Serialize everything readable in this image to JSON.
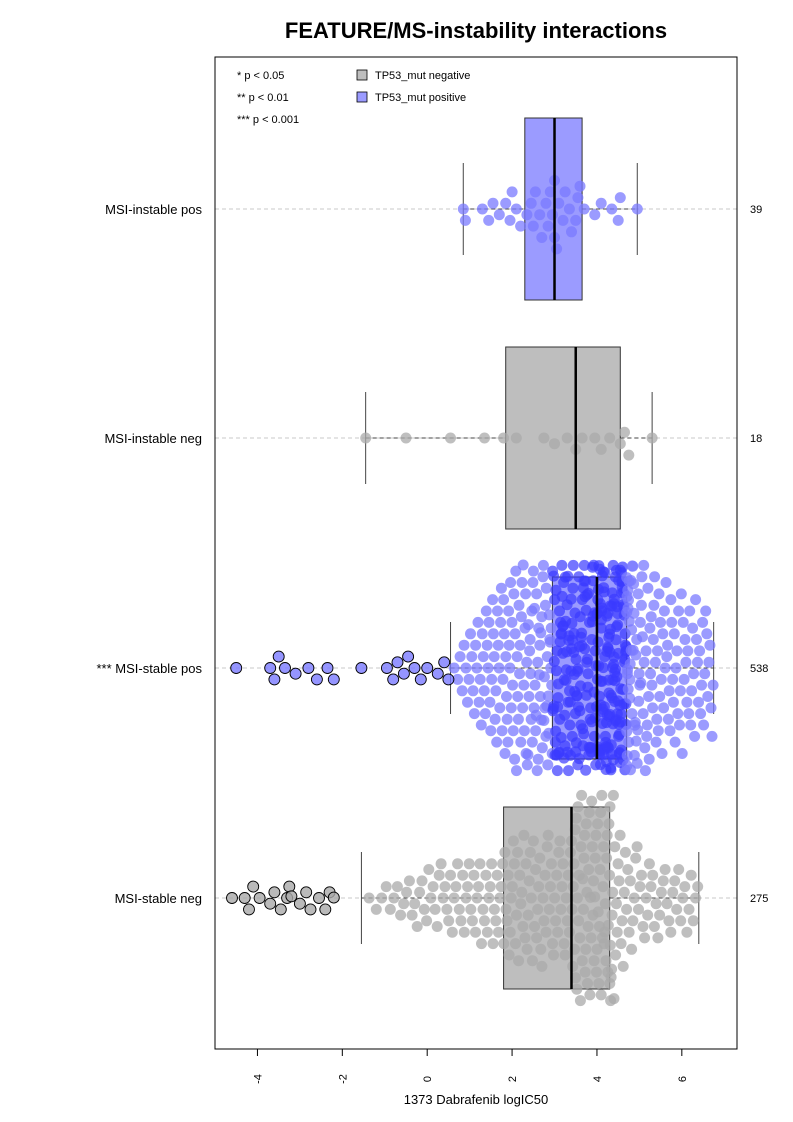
{
  "chart_data": {
    "type": "boxplot-beeswarm",
    "title": "FEATURE/MS-instability interactions",
    "xlabel": "1373 Dabrafenib logIC50",
    "xlim": [
      -5.0,
      7.3
    ],
    "xticks": [
      -4,
      -2,
      0,
      2,
      4,
      6
    ],
    "xtick_labels": [
      "-4",
      "-2",
      "0",
      "2",
      "4",
      "6"
    ],
    "grid": "horizontal dashed lines through each group",
    "legend_position": "top-left",
    "significance_legend": [
      "* p < 0.05",
      "** p < 0.01",
      "*** p < 0.001"
    ],
    "legend": [
      {
        "label": "TP53_mut negative",
        "color": "#bebebe"
      },
      {
        "label": "TP53_mut positive",
        "color": "#9b9bff"
      }
    ],
    "colors": {
      "negative_fill": "#bebebe",
      "negative_point": "#a9a9a9",
      "positive_fill": "#9b9bff",
      "positive_point": "#7a7aff",
      "positive_point_dense": "#3b3bff"
    },
    "groups": [
      {
        "label": "MSI-instable pos",
        "count_label": "39",
        "tp53": "positive",
        "box": {
          "whisker_low": 0.85,
          "q1": 2.3,
          "median": 3.0,
          "q3": 3.65,
          "whisker_high": 4.95
        },
        "outliers": [],
        "points": [
          0.85,
          0.9,
          1.3,
          1.45,
          1.55,
          1.7,
          1.85,
          1.95,
          2.0,
          2.1,
          2.2,
          2.35,
          2.45,
          2.5,
          2.55,
          2.65,
          2.7,
          2.8,
          2.85,
          2.9,
          2.95,
          3.0,
          3.0,
          3.05,
          3.1,
          3.2,
          3.25,
          3.35,
          3.4,
          3.5,
          3.55,
          3.6,
          3.7,
          3.95,
          4.1,
          4.35,
          4.5,
          4.55,
          4.95
        ]
      },
      {
        "label": "MSI-instable neg",
        "count_label": "18",
        "tp53": "negative",
        "box": {
          "whisker_low": -1.45,
          "q1": 1.85,
          "median": 3.5,
          "q3": 4.55,
          "whisker_high": 5.3
        },
        "outliers": [],
        "points": [
          -1.45,
          -0.5,
          0.55,
          1.35,
          1.8,
          2.1,
          2.75,
          3.0,
          3.3,
          3.5,
          3.65,
          3.95,
          4.1,
          4.3,
          4.55,
          4.65,
          4.75,
          5.3
        ]
      },
      {
        "label": "MSI-stable pos",
        "count_label": "538",
        "significance": "***",
        "tp53": "positive",
        "box": {
          "whisker_low": 0.55,
          "q1": 2.95,
          "median": 4.0,
          "q3": 4.7,
          "whisker_high": 6.75
        },
        "outliers": [
          -4.5,
          -3.7,
          -3.6,
          -3.5,
          -3.35,
          -3.1,
          -2.8,
          -2.6,
          -2.35,
          -2.2,
          -1.55,
          -0.95,
          -0.8,
          -0.7,
          -0.55,
          -0.45,
          -0.3,
          -0.15,
          0.0,
          0.25,
          0.4,
          0.5
        ],
        "distribution": {
          "min": 0.55,
          "q1": 2.95,
          "median": 4.0,
          "q3": 4.7,
          "max": 6.75
        }
      },
      {
        "label": "MSI-stable neg",
        "count_label": "275",
        "tp53": "negative",
        "box": {
          "whisker_low": -1.55,
          "q1": 1.8,
          "median": 3.4,
          "q3": 4.3,
          "whisker_high": 6.4
        },
        "outliers": [
          -4.6,
          -4.3,
          -4.2,
          -4.1,
          -3.95,
          -3.7,
          -3.6,
          -3.45,
          -3.3,
          -3.25,
          -3.2,
          -3.0,
          -2.85,
          -2.75,
          -2.55,
          -2.4,
          -2.3,
          -2.2
        ],
        "distribution": {
          "min": -1.55,
          "q1": 1.8,
          "median": 3.4,
          "q3": 4.3,
          "max": 6.4
        }
      }
    ]
  }
}
